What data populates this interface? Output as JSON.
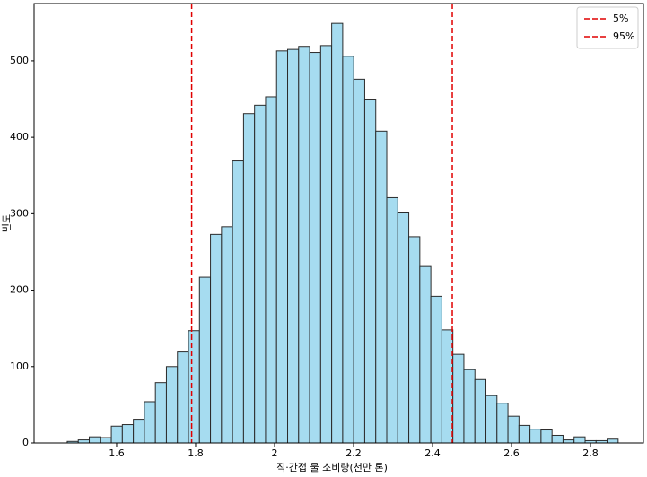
{
  "chart_data": {
    "type": "histogram",
    "xlabel": "직·간접 물 소비량(천만 톤)",
    "ylabel": "빈도",
    "bins": [
      1.475,
      1.5029,
      1.5308,
      1.5587,
      1.5866,
      1.6145,
      1.6424,
      1.6703,
      1.6982,
      1.7261,
      1.754,
      1.7819,
      1.8098,
      1.8377,
      1.8656,
      1.8935,
      1.9214,
      1.9493,
      1.9772,
      2.0051,
      2.033,
      2.0609,
      2.0888,
      2.1167,
      2.1446,
      2.1725,
      2.2004,
      2.2283,
      2.2562,
      2.2841,
      2.312,
      2.3399,
      2.3678,
      2.3957,
      2.4236,
      2.4515,
      2.4794,
      2.5073,
      2.5352,
      2.5631,
      2.591,
      2.6189,
      2.6468,
      2.6747,
      2.7026,
      2.7305,
      2.7584,
      2.7863,
      2.8142,
      2.8421,
      2.87
    ],
    "values": [
      2,
      4,
      8,
      7,
      22,
      24,
      31,
      54,
      79,
      100,
      119,
      147,
      217,
      273,
      283,
      369,
      431,
      442,
      453,
      513,
      515,
      519,
      511,
      520,
      549,
      506,
      476,
      450,
      408,
      321,
      301,
      270,
      231,
      192,
      148,
      116,
      96,
      83,
      62,
      52,
      35,
      23,
      18,
      17,
      10,
      4,
      8,
      3,
      3,
      5
    ],
    "color": "#a6dcf0",
    "edgecolor": "#2b2b2b",
    "xlim": [
      1.391,
      2.934
    ],
    "ylim": [
      0,
      575
    ],
    "xticks": [
      1.6,
      1.8,
      2.0,
      2.2,
      2.4,
      2.6,
      2.8
    ],
    "yticks": [
      0,
      100,
      200,
      300,
      400,
      500
    ],
    "vlines": [
      {
        "name": "5%",
        "x": 1.79,
        "color": "#e00000"
      },
      {
        "name": "95%",
        "x": 2.45,
        "color": "#e00000"
      }
    ],
    "legend": "upper right"
  }
}
